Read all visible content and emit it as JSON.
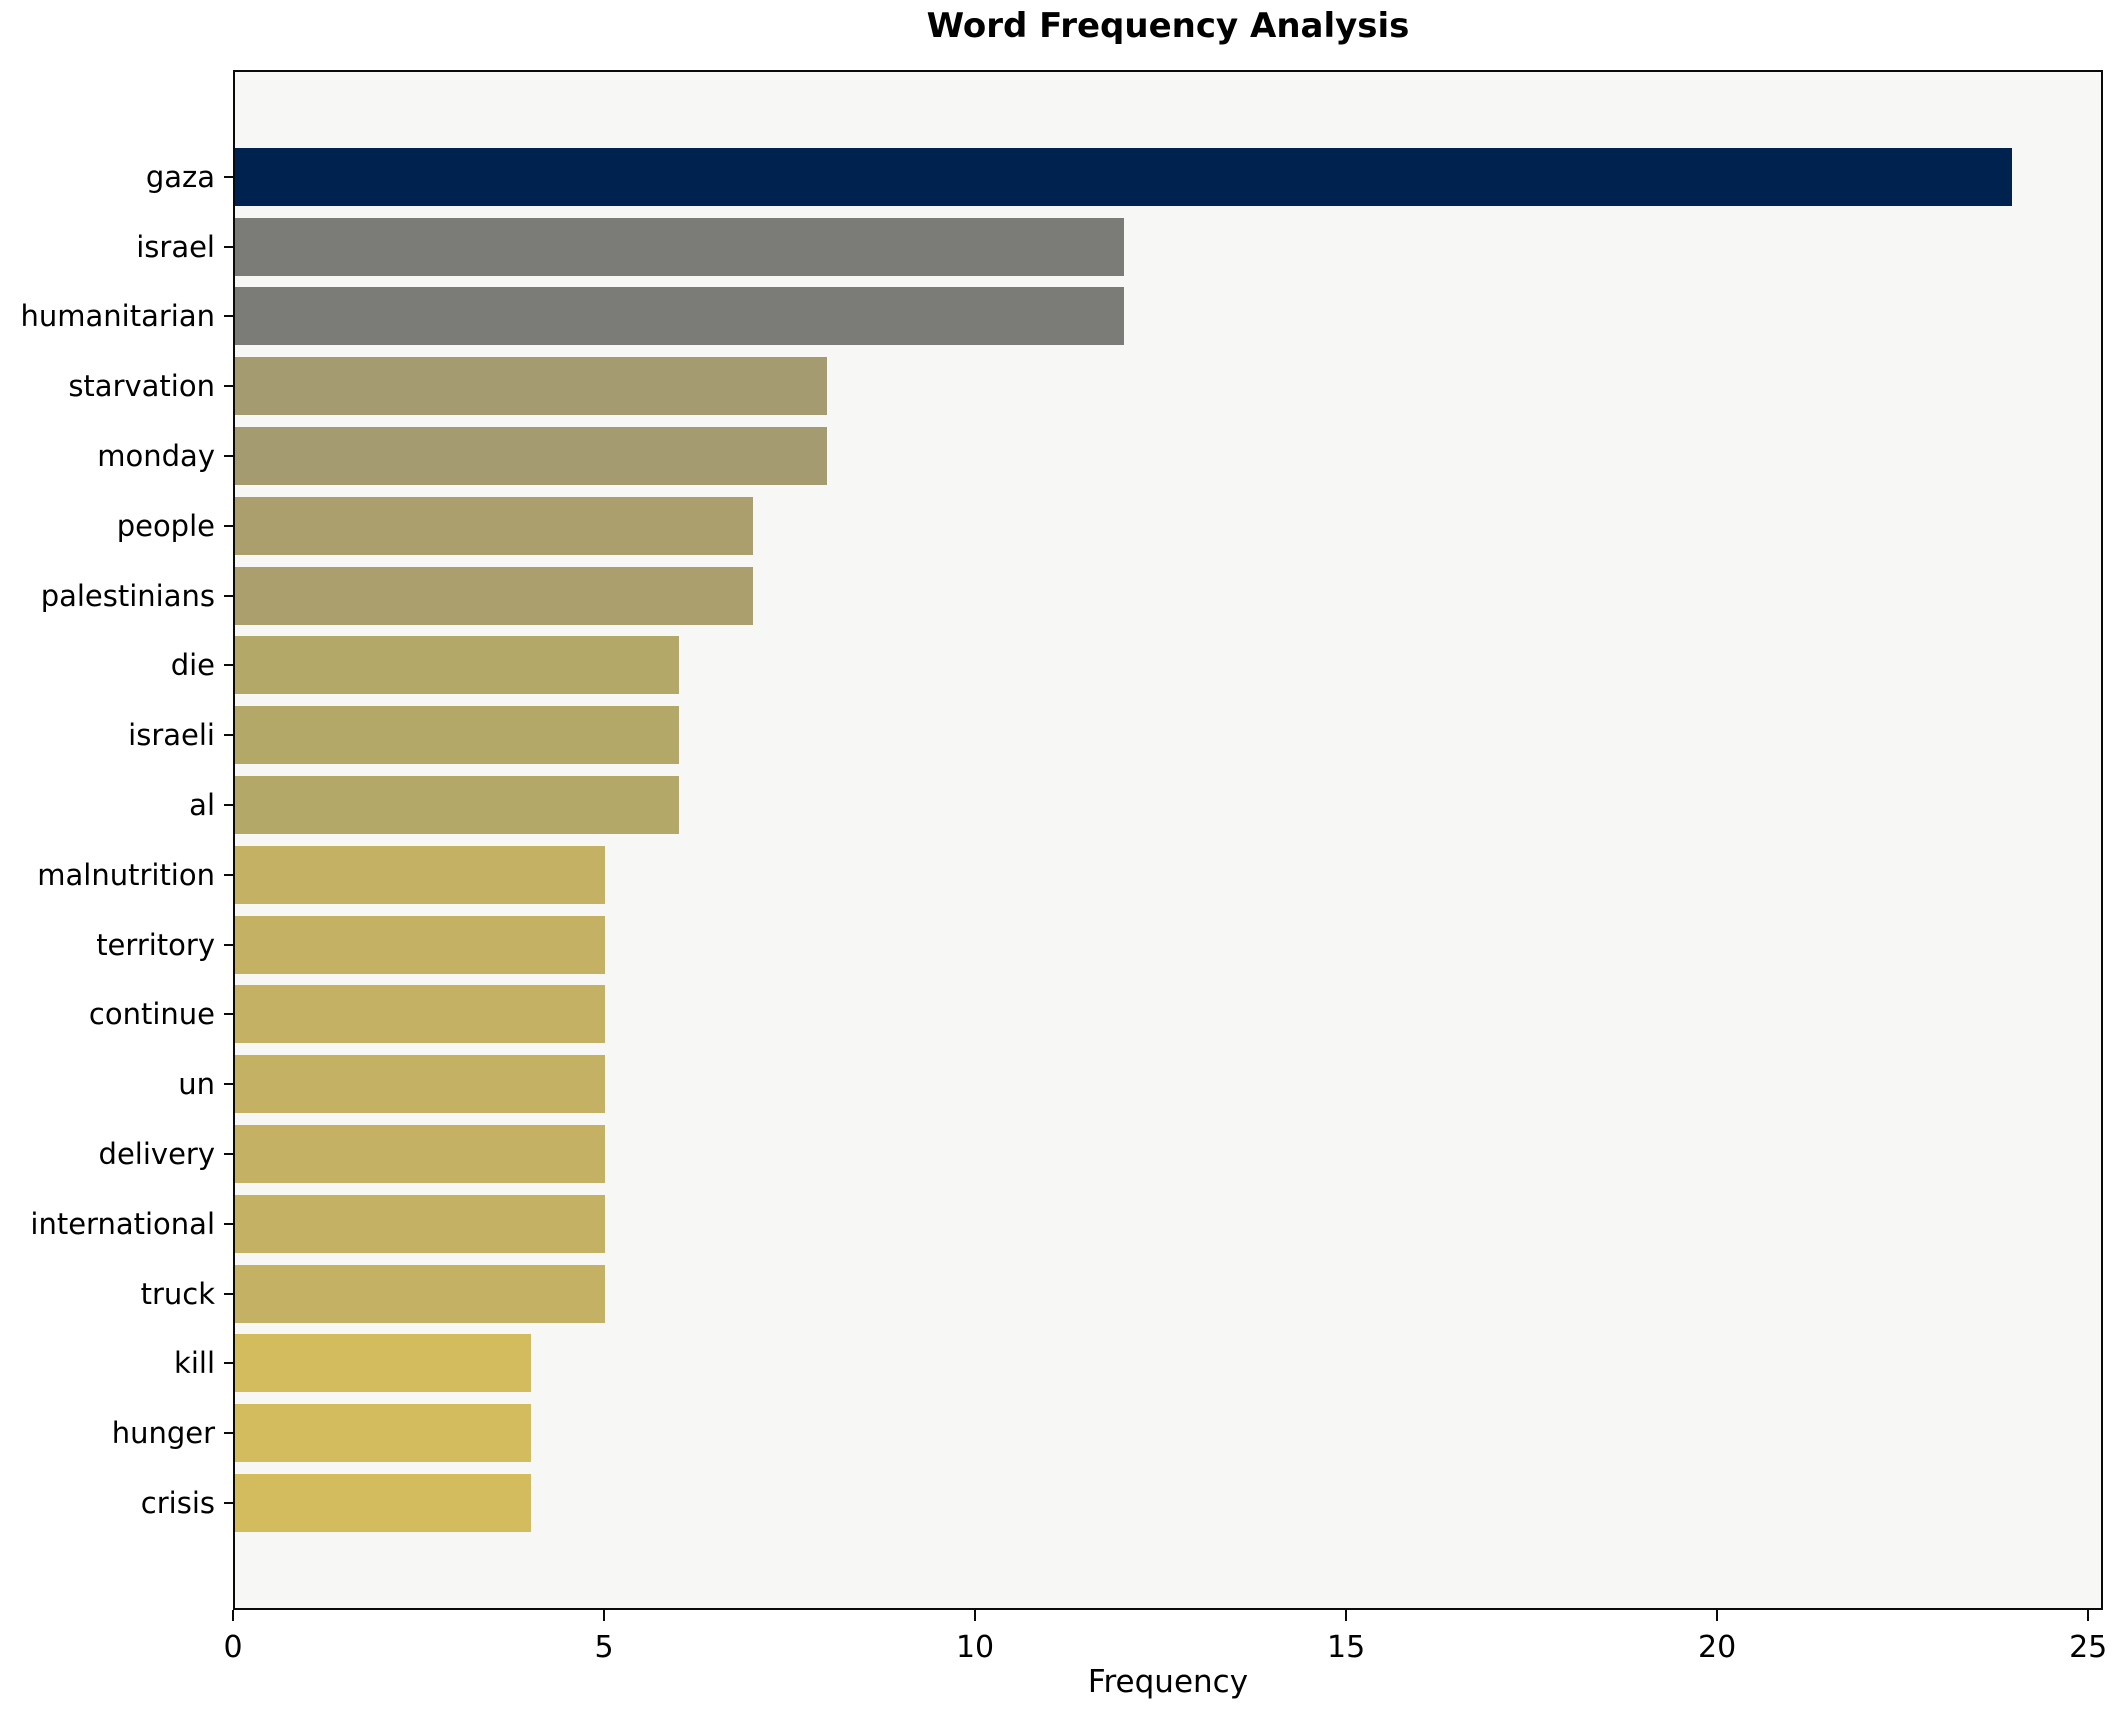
{
  "chart_data": {
    "type": "bar",
    "orientation": "horizontal",
    "title": "Word Frequency Analysis",
    "xlabel": "Frequency",
    "ylabel": "",
    "xlim": [
      0,
      25.2
    ],
    "xticks": [
      0,
      5,
      10,
      15,
      20,
      25
    ],
    "grid": false,
    "legend_position": "none",
    "categories": [
      "gaza",
      "israel",
      "humanitarian",
      "starvation",
      "monday",
      "people",
      "palestinians",
      "die",
      "israeli",
      "al",
      "malnutrition",
      "territory",
      "continue",
      "un",
      "delivery",
      "international",
      "truck",
      "kill",
      "hunger",
      "crisis"
    ],
    "values": [
      24,
      12,
      12,
      8,
      8,
      7,
      7,
      6,
      6,
      6,
      5,
      5,
      5,
      5,
      5,
      5,
      5,
      4,
      4,
      4
    ],
    "bar_colors": [
      "#00224e",
      "#7b7b78",
      "#7b7b78",
      "#a49b71",
      "#a49b71",
      "#aba06d",
      "#aba06d",
      "#b3a868",
      "#b3a868",
      "#b3a868",
      "#c4b163",
      "#c4b163",
      "#c4b163",
      "#c4b163",
      "#c4b163",
      "#c4b163",
      "#c4b163",
      "#d3bc5e",
      "#d3bc5e",
      "#d3bc5e"
    ],
    "colors": {
      "plot_background": "#f7f7f6",
      "figure_background": "#ffffff",
      "axis": "#0a0a0a",
      "text": "#000000"
    }
  }
}
